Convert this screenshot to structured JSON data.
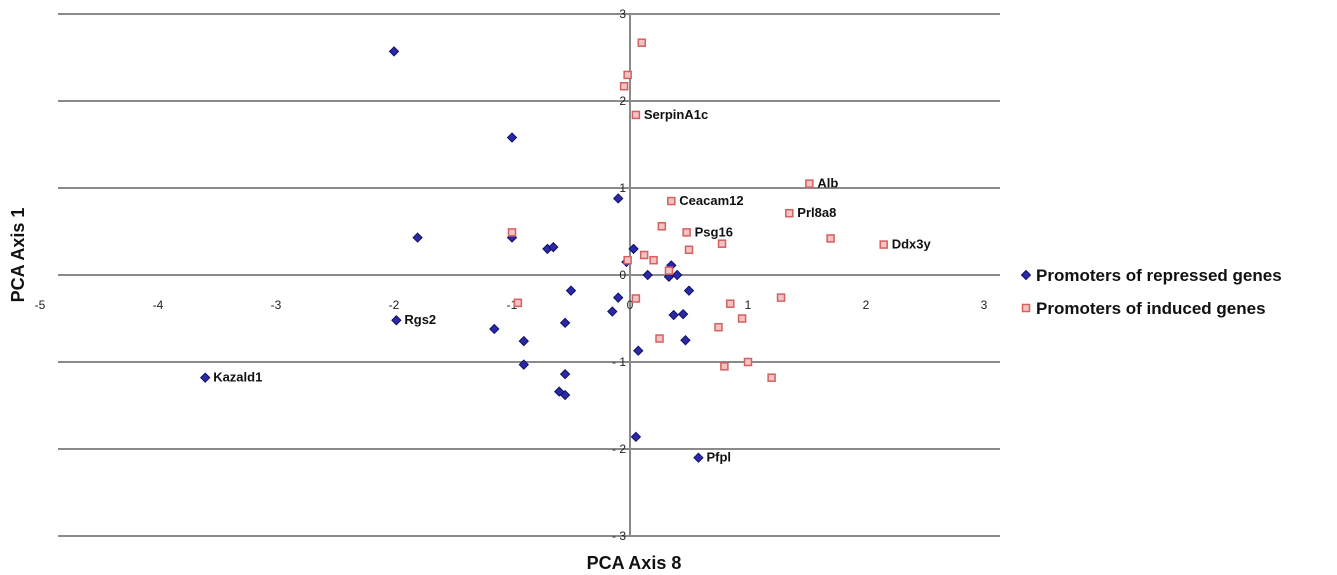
{
  "chart_data": {
    "type": "scatter",
    "xlabel": "PCA Axis 8",
    "ylabel": "PCA Axis 1",
    "xlim": [
      -5,
      3
    ],
    "ylim": [
      -3,
      3
    ],
    "x_ticks": [
      -5,
      -4,
      -3,
      -2,
      -1,
      0,
      1,
      2,
      3
    ],
    "y_ticks": [
      3,
      2,
      1,
      0,
      -1,
      -2,
      -3
    ],
    "x_tick_labels": [
      "-5",
      "-4",
      "-3",
      "-2",
      "-1",
      "0",
      "1",
      "2",
      "3"
    ],
    "y_tick_labels": [
      "3",
      "2",
      "1",
      "0",
      "- 1",
      "- 2",
      "- 3"
    ],
    "grid": "horizontal",
    "legend_position": "right",
    "series": [
      {
        "name": "Promoters of repressed genes",
        "marker": "diamond",
        "color": "#2a2aa8",
        "points": [
          {
            "x": -2.0,
            "y": 2.57
          },
          {
            "x": -1.0,
            "y": 1.58
          },
          {
            "x": -1.8,
            "y": 0.43
          },
          {
            "x": -1.0,
            "y": 0.43
          },
          {
            "x": -0.7,
            "y": 0.3
          },
          {
            "x": -0.65,
            "y": 0.32
          },
          {
            "x": -0.1,
            "y": 0.88
          },
          {
            "x": 0.03,
            "y": 0.3
          },
          {
            "x": -0.03,
            "y": 0.15
          },
          {
            "x": 0.35,
            "y": 0.11
          },
          {
            "x": 0.4,
            "y": 0.0
          },
          {
            "x": 0.33,
            "y": -0.02
          },
          {
            "x": 0.5,
            "y": -0.18
          },
          {
            "x": -0.5,
            "y": -0.18
          },
          {
            "x": -0.1,
            "y": -0.26
          },
          {
            "x": -0.15,
            "y": -0.42
          },
          {
            "x": 0.15,
            "y": 0.0
          },
          {
            "x": 0.45,
            "y": -0.45
          },
          {
            "x": 0.37,
            "y": -0.46
          },
          {
            "x": -0.55,
            "y": -0.55
          },
          {
            "x": -1.15,
            "y": -0.62
          },
          {
            "x": -0.9,
            "y": -0.76
          },
          {
            "x": 0.47,
            "y": -0.75
          },
          {
            "x": 0.07,
            "y": -0.87
          },
          {
            "x": -0.9,
            "y": -1.03
          },
          {
            "x": -0.55,
            "y": -1.14
          },
          {
            "x": -0.6,
            "y": -1.34
          },
          {
            "x": -0.55,
            "y": -1.38
          },
          {
            "x": 0.05,
            "y": -1.86
          },
          {
            "x": -1.98,
            "y": -0.52,
            "label": "Rgs2"
          },
          {
            "x": -3.6,
            "y": -1.18,
            "label": "Kazald1"
          },
          {
            "x": 0.58,
            "y": -2.1,
            "label": "Pfpl"
          }
        ]
      },
      {
        "name": "Promoters of induced genes",
        "marker": "square",
        "color": "#d46060",
        "points": [
          {
            "x": 0.1,
            "y": 2.67
          },
          {
            "x": -0.02,
            "y": 2.3
          },
          {
            "x": -0.05,
            "y": 2.17
          },
          {
            "x": 0.05,
            "y": 1.84,
            "label": "SerpinA1c"
          },
          {
            "x": 1.52,
            "y": 1.05,
            "label": "Alb"
          },
          {
            "x": 1.35,
            "y": 0.71,
            "label": "Prl8a8"
          },
          {
            "x": 2.15,
            "y": 0.35,
            "label": "Ddx3y"
          },
          {
            "x": 0.35,
            "y": 0.85,
            "label": "Ceacam12"
          },
          {
            "x": 0.48,
            "y": 0.49,
            "label": "Psg16"
          },
          {
            "x": 0.27,
            "y": 0.56
          },
          {
            "x": 0.78,
            "y": 0.36
          },
          {
            "x": 1.7,
            "y": 0.42
          },
          {
            "x": 0.5,
            "y": 0.29
          },
          {
            "x": 0.12,
            "y": 0.23
          },
          {
            "x": 0.2,
            "y": 0.17
          },
          {
            "x": -0.02,
            "y": 0.17
          },
          {
            "x": -1.0,
            "y": 0.49
          },
          {
            "x": 0.33,
            "y": 0.05
          },
          {
            "x": -0.95,
            "y": -0.32
          },
          {
            "x": 0.05,
            "y": -0.27
          },
          {
            "x": 1.28,
            "y": -0.26
          },
          {
            "x": 0.85,
            "y": -0.33
          },
          {
            "x": 0.95,
            "y": -0.5
          },
          {
            "x": 0.75,
            "y": -0.6
          },
          {
            "x": 0.25,
            "y": -0.73
          },
          {
            "x": 0.8,
            "y": -1.05
          },
          {
            "x": 1.0,
            "y": -1.0
          },
          {
            "x": 1.2,
            "y": -1.18
          }
        ]
      }
    ]
  }
}
